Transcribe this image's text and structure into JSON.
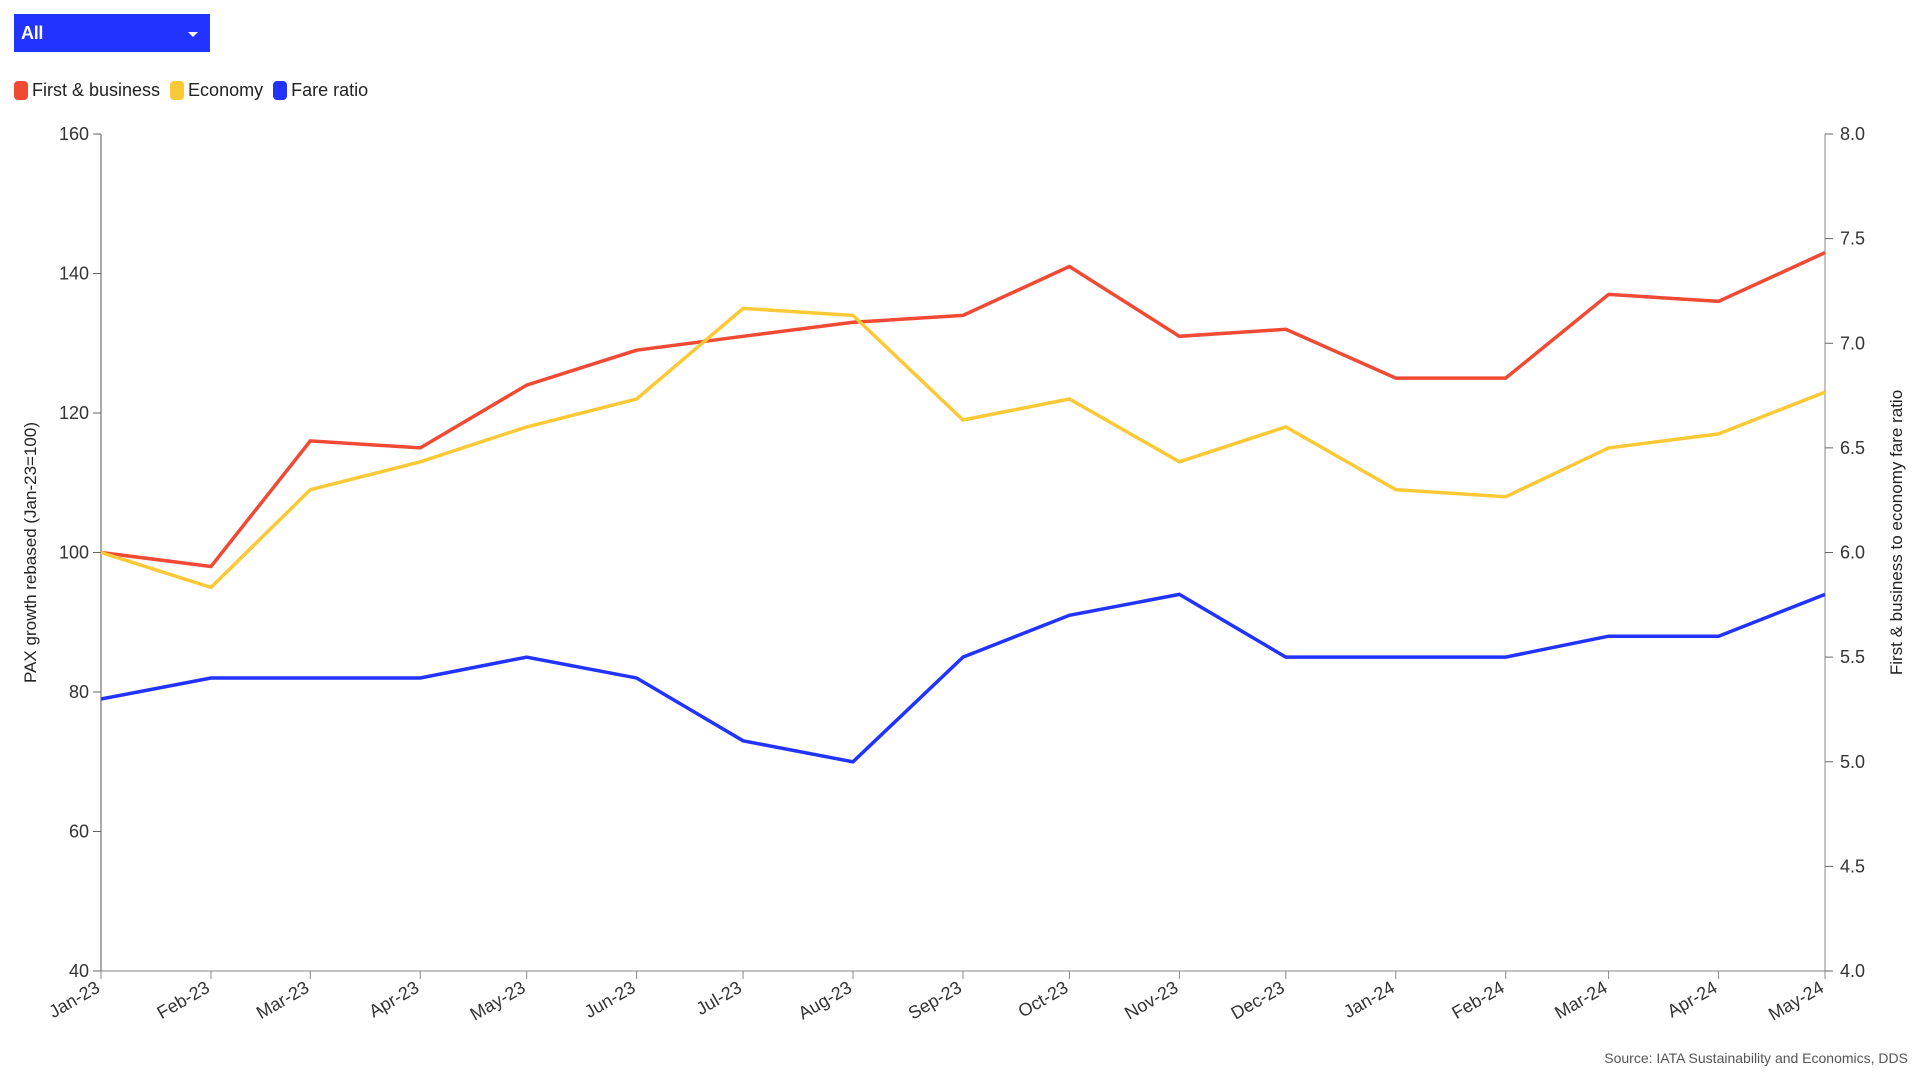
{
  "filter": {
    "selected": "All"
  },
  "legend": [
    {
      "label": "First & business",
      "color": "#F04A35"
    },
    {
      "label": "Economy",
      "color": "#FBC935"
    },
    {
      "label": "Fare ratio",
      "color": "#2233FF"
    }
  ],
  "source": "Source: IATA Sustainability and Economics, DDS",
  "chart_data": {
    "type": "line",
    "title": "",
    "x": [
      "Jan-23",
      "Feb-23",
      "Mar-23",
      "Apr-23",
      "May-23",
      "Jun-23",
      "Jul-23",
      "Aug-23",
      "Sep-23",
      "Oct-23",
      "Nov-23",
      "Dec-23",
      "Jan-24",
      "Feb-24",
      "Mar-24",
      "Apr-24",
      "May-24"
    ],
    "x_days": [
      0,
      31,
      59,
      90,
      120,
      151,
      181,
      212,
      243,
      273,
      304,
      334,
      365,
      396,
      425,
      456,
      486
    ],
    "series": [
      {
        "name": "First & business",
        "axis": "left",
        "color": "#F04A35",
        "values": [
          100,
          98,
          116,
          115,
          124,
          129,
          131,
          133,
          134,
          141,
          131,
          132,
          125,
          125,
          137,
          136,
          143
        ]
      },
      {
        "name": "Economy",
        "axis": "left",
        "color": "#FBC935",
        "values": [
          100,
          95,
          109,
          113,
          118,
          122,
          135,
          134,
          119,
          122,
          113,
          118,
          109,
          108,
          115,
          117,
          123
        ]
      },
      {
        "name": "Fare ratio",
        "axis": "right",
        "color": "#2233FF",
        "values": [
          5.3,
          5.4,
          5.4,
          5.4,
          5.5,
          5.4,
          5.1,
          5.0,
          5.5,
          5.7,
          5.8,
          5.5,
          5.5,
          5.5,
          5.6,
          5.6,
          5.8
        ]
      }
    ],
    "ylabel": "PAX growth rebased (Jan-23=100)",
    "ylim": [
      40,
      160
    ],
    "yticks": [
      40,
      60,
      80,
      100,
      120,
      140,
      160
    ],
    "y2label": "First & business to economy fare ratio",
    "y2lim": [
      4.0,
      8.0
    ],
    "y2ticks": [
      "4.0",
      "4.5",
      "5.0",
      "5.5",
      "6.0",
      "6.5",
      "7.0",
      "7.5",
      "8.0"
    ],
    "grid": false,
    "legend_position": "top-left"
  }
}
